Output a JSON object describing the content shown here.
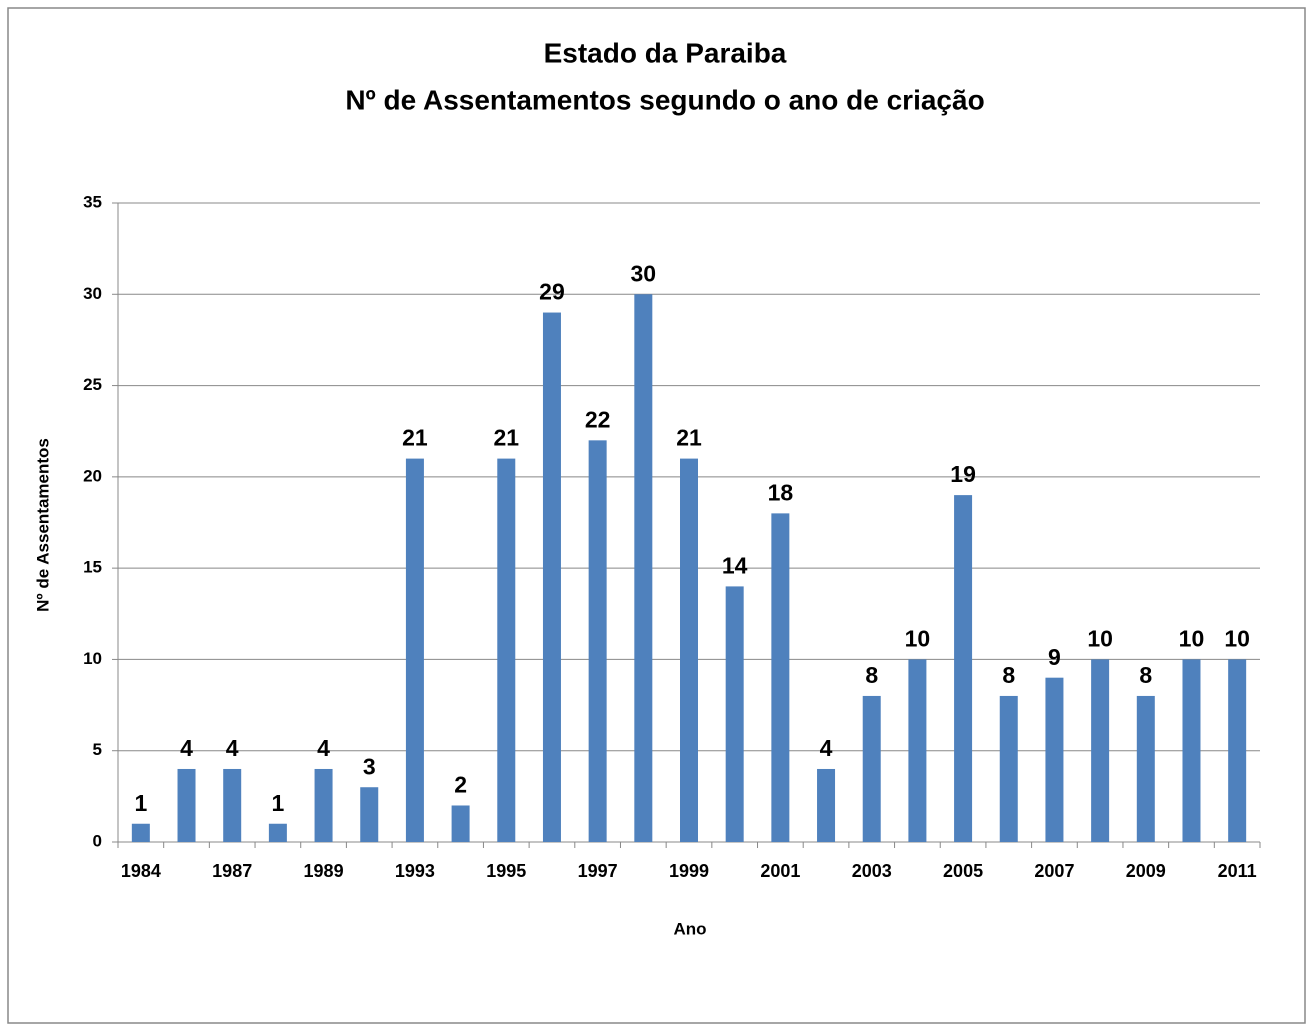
{
  "chart_data": {
    "type": "bar",
    "title": "Estado da Paraiba",
    "subtitle": "Nº de Assentamentos segundo o ano de criação",
    "x_label": "Ano",
    "y_label": "Nº de Assentamentos",
    "categories": [
      "1984",
      null,
      "1987",
      null,
      "1989",
      null,
      "1993",
      null,
      "1995",
      null,
      "1997",
      null,
      "1999",
      null,
      "2001",
      null,
      "2003",
      null,
      "2005",
      null,
      "2007",
      null,
      "2009",
      null,
      "2011"
    ],
    "values": [
      1,
      4,
      4,
      1,
      4,
      3,
      21,
      2,
      21,
      29,
      22,
      30,
      21,
      14,
      18,
      4,
      8,
      10,
      19,
      8,
      9,
      10,
      8,
      10,
      10
    ],
    "color": "#4f81bd",
    "ylim": [
      0,
      35
    ],
    "yticks": [
      0,
      5,
      10,
      15,
      20,
      25,
      30,
      35
    ],
    "grid": true
  }
}
